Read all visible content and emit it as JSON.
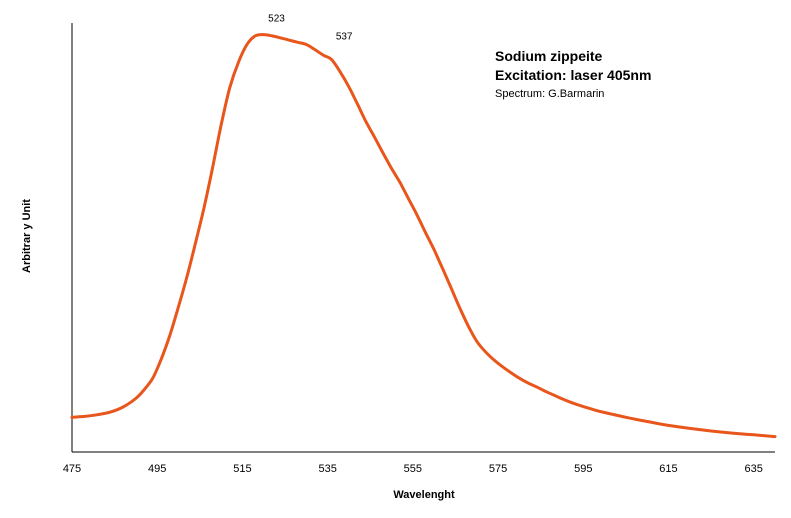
{
  "chart_data": {
    "type": "line",
    "title_lines": [
      "Sodium zippeite",
      "Excitation: laser 405nm"
    ],
    "subtitle": "Spectrum: G.Barmarin",
    "xlabel": "Wavelenght",
    "ylabel": "Arbitrar y Unit",
    "xlim": [
      475,
      640
    ],
    "ylim": [
      0,
      100
    ],
    "x_ticks": [
      475,
      495,
      515,
      535,
      555,
      575,
      595,
      615,
      635
    ],
    "grid": false,
    "legend": "none",
    "line_color": "#e8561c",
    "annotations": [
      {
        "text": "523",
        "x": 523,
        "y": 97.3
      },
      {
        "text": "537",
        "x": 537,
        "y": 93.1
      }
    ],
    "series": [
      {
        "x": [
          475,
          478,
          481,
          484,
          487,
          490,
          492,
          494,
          496,
          498,
          500,
          502,
          504,
          506,
          508,
          510,
          512,
          514,
          516,
          518,
          520,
          522,
          524,
          526,
          528,
          530,
          532,
          534,
          536,
          538,
          540,
          542,
          544,
          546,
          548,
          550,
          552,
          554,
          556,
          558,
          560,
          562,
          564,
          566,
          568,
          570,
          572,
          574,
          576,
          578,
          580,
          582,
          584,
          586,
          588,
          590,
          592,
          594,
          596,
          598,
          600,
          605,
          610,
          615,
          620,
          625,
          630,
          635,
          640
        ],
        "y": [
          8.1,
          8.3,
          8.7,
          9.3,
          10.5,
          12.5,
          14.6,
          17.3,
          21.8,
          27.3,
          33.9,
          40.9,
          48.8,
          57.0,
          66.3,
          76.2,
          84.8,
          90.7,
          94.9,
          97.0,
          97.3,
          97.0,
          96.5,
          96.0,
          95.5,
          95.0,
          93.8,
          92.5,
          91.4,
          88.5,
          85.1,
          81.1,
          77.0,
          73.4,
          69.7,
          66.1,
          62.8,
          59.0,
          55.2,
          51.1,
          47.1,
          42.7,
          38.2,
          33.6,
          29.4,
          25.8,
          23.4,
          21.5,
          19.9,
          18.5,
          17.2,
          16.1,
          15.2,
          14.2,
          13.3,
          12.4,
          11.6,
          10.9,
          10.3,
          9.7,
          9.2,
          8.1,
          7.1,
          6.2,
          5.5,
          4.9,
          4.4,
          4.0,
          3.6
        ]
      }
    ]
  }
}
